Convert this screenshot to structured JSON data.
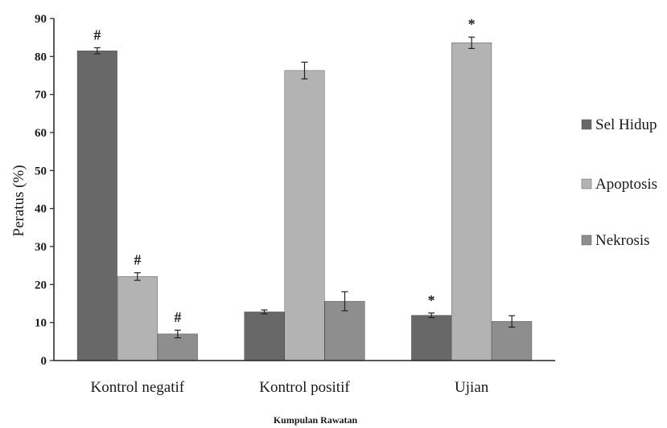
{
  "chart_data": {
    "type": "bar",
    "title": "",
    "ylabel": "Peratus (%)",
    "xlabel": "Kumpulan Rawatan",
    "ylim": [
      0,
      90
    ],
    "yticks": [
      0,
      10,
      20,
      30,
      40,
      50,
      60,
      70,
      80,
      90
    ],
    "categories": [
      "Kontrol negatif",
      "Kontrol positif",
      "Ujian"
    ],
    "series": [
      {
        "name": "Sel Hidup",
        "color": "#686868",
        "values": [
          81.5,
          12.8,
          11.9
        ],
        "errors": [
          0.8,
          0.5,
          0.6
        ],
        "marks": [
          "#",
          "",
          "*"
        ]
      },
      {
        "name": "Apoptosis",
        "color": "#b3b3b3",
        "values": [
          22.1,
          76.3,
          83.6
        ],
        "errors": [
          1.0,
          2.2,
          1.5
        ],
        "marks": [
          "#",
          "",
          "*"
        ]
      },
      {
        "name": "Nekrosis",
        "color": "#8e8e8e",
        "values": [
          7.0,
          15.6,
          10.3
        ],
        "errors": [
          1.0,
          2.5,
          1.5
        ],
        "marks": [
          "#",
          "",
          ""
        ]
      }
    ],
    "legend": "right",
    "grid": false
  }
}
